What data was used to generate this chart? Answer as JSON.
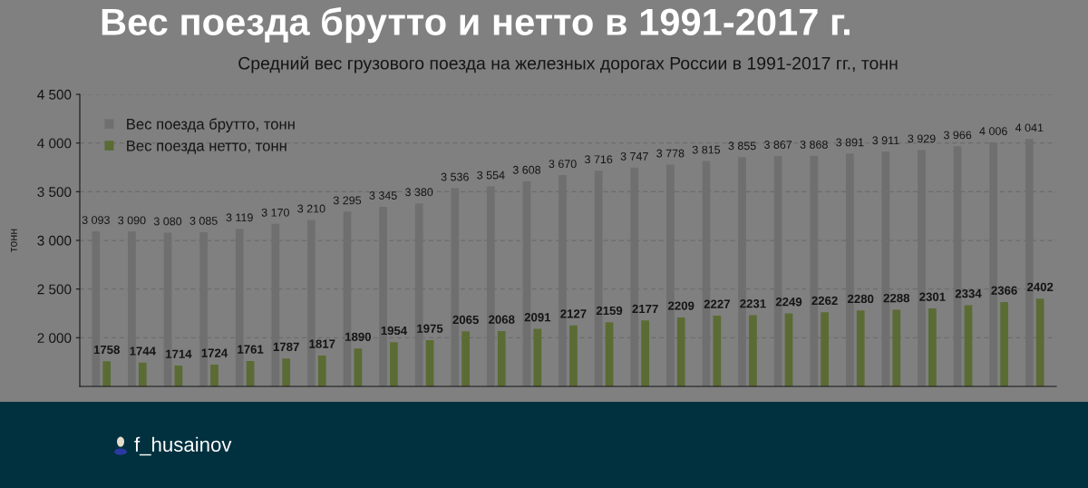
{
  "chart_data": {
    "type": "bar",
    "title": "Вес поезда брутто и нетто в 1991-2017 г.",
    "subtitle": "Средний вес грузового поезда на железных дорогах России в 1991-2017 гг., тонн",
    "ylabel": "тонн",
    "categories": [
      null,
      null,
      null,
      null,
      null,
      null,
      null,
      null,
      null,
      null,
      null,
      null,
      null,
      null,
      null,
      null,
      null,
      null,
      null,
      null,
      null,
      null,
      null,
      null,
      null,
      null,
      null
    ],
    "series": [
      {
        "name": "Вес поезда брутто, тонн",
        "color": "#6f6f6f",
        "values": [
          3093,
          3090,
          3080,
          3085,
          3119,
          3170,
          3210,
          3295,
          3345,
          3380,
          3536,
          3554,
          3608,
          3670,
          3716,
          3747,
          3778,
          3815,
          3855,
          3867,
          3868,
          3891,
          3911,
          3929,
          3966,
          4006,
          4041
        ],
        "value_labels": [
          "3 093",
          "3 090",
          "3 080",
          "3 085",
          "3 119",
          "3 170",
          "3 210",
          "3 295",
          "3 345",
          "3 380",
          "3 536",
          "3 554",
          "3 608",
          "3 670",
          "3 716",
          "3 747",
          "3 778",
          "3 815",
          "3 855",
          "3 867",
          "3 868",
          "3 891",
          "3 911",
          "3 929",
          "3 966",
          "4 006",
          "4 041"
        ]
      },
      {
        "name": "Вес поезда нетто, тонн",
        "color": "#5b6b34",
        "values": [
          1758,
          1744,
          1714,
          1724,
          1761,
          1787,
          1817,
          1890,
          1954,
          1975,
          2065,
          2068,
          2091,
          2127,
          2159,
          2177,
          2209,
          2227,
          2231,
          2249,
          2262,
          2280,
          2288,
          2301,
          2334,
          2366,
          2402
        ],
        "value_labels": [
          "1758",
          "1744",
          "1714",
          "1724",
          "1761",
          "1787",
          "1817",
          "1890",
          "1954",
          "1975",
          "2065",
          "2068",
          "2091",
          "2127",
          "2159",
          "2177",
          "2209",
          "2227",
          "2231",
          "2249",
          "2262",
          "2280",
          "2288",
          "2301",
          "2334",
          "2366",
          "2402"
        ]
      }
    ],
    "ylim": [
      1500,
      4500
    ],
    "yticks": [
      {
        "value": 2000,
        "label": "2 000"
      },
      {
        "value": 2500,
        "label": "2 500"
      },
      {
        "value": 3000,
        "label": "3 000"
      },
      {
        "value": 3500,
        "label": "3 500"
      },
      {
        "value": 4000,
        "label": "4 000"
      },
      {
        "value": 4500,
        "label": "4 500"
      }
    ],
    "grid": "y",
    "legend": "top left",
    "tick_labels": "y",
    "annotations": [
      "f_husainov"
    ]
  }
}
